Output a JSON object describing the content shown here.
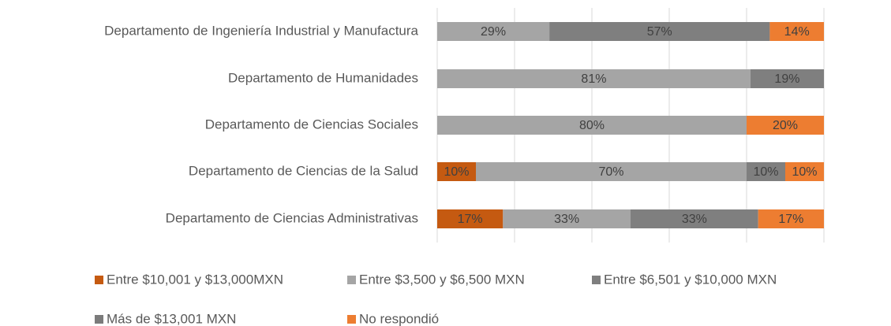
{
  "chart_data": {
    "type": "stacked-bar-horizontal",
    "categories": [
      "Departamento de Ingeniería Industrial y Manufactura",
      "Departamento de Humanidades",
      "Departamento de Ciencias Sociales",
      "Departamento de Ciencias de la Salud",
      "Departamento de Ciencias Administrativas"
    ],
    "series": [
      {
        "name": "Entre $10,001 y $13,000MXN",
        "color": "#c55a11",
        "values": [
          0,
          0,
          0,
          10,
          17
        ],
        "value_labels": [
          null,
          null,
          null,
          "10%",
          "17%"
        ]
      },
      {
        "name": "Entre $3,500 y $6,500 MXN",
        "color": "#a5a5a5",
        "values": [
          29,
          81,
          80,
          70,
          33
        ],
        "value_labels": [
          "29%",
          "81%",
          "80%",
          "70%",
          "33%"
        ]
      },
      {
        "name": "Entre $6,501 y $10,000 MXN",
        "color": "#7f7f7f",
        "values": [
          57,
          19,
          0,
          10,
          33
        ],
        "value_labels": [
          "57%",
          "19%",
          null,
          "10%",
          "33%"
        ]
      },
      {
        "name": "Más de $13,001 MXN",
        "color": "#7b7b7b",
        "values": [
          0,
          0,
          0,
          0,
          0
        ],
        "value_labels": [
          null,
          null,
          null,
          null,
          null
        ]
      },
      {
        "name": "No respondió",
        "color": "#ed7d31",
        "values": [
          14,
          0,
          20,
          10,
          17
        ],
        "value_labels": [
          "14%",
          null,
          "20%",
          "10%",
          "17%"
        ]
      }
    ],
    "xlim": [
      0,
      100
    ],
    "xticks": [
      0,
      20,
      40,
      60,
      80,
      100
    ],
    "grid": true,
    "legend": "bottom"
  }
}
